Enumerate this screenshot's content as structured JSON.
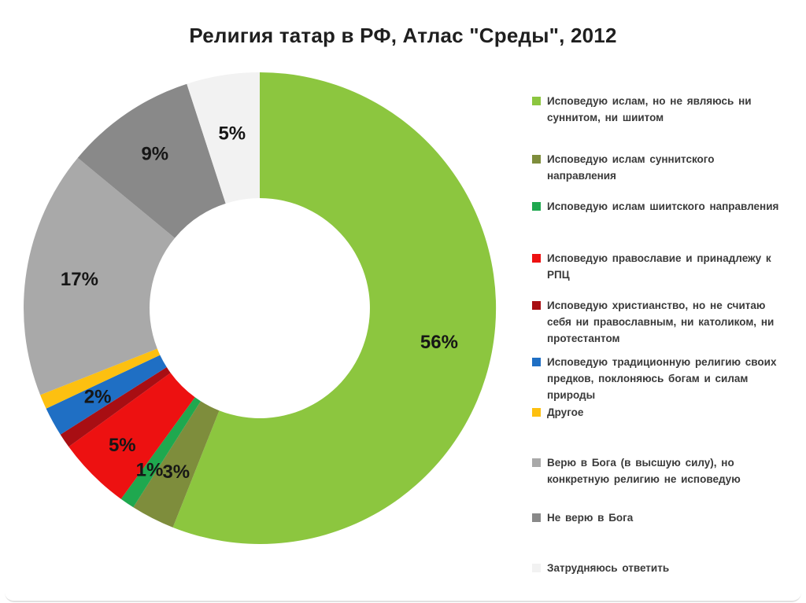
{
  "title": "Религия татар в РФ, Атлас \"Среды\", 2012",
  "chart_data": {
    "type": "pie",
    "donut": true,
    "title": "Религия татар в РФ, Атлас \"Среды\", 2012",
    "start_angle_deg": 0,
    "direction": "clockwise",
    "legend_position": "right",
    "hole_color": "#ffffff",
    "slices": [
      {
        "label": "Исповедую ислам,  но не являюсь  ни суннитом,  ни шиитом",
        "value": 56,
        "pct_label": "56%",
        "color": "#8CC63F",
        "label_r": 232
      },
      {
        "label": "Исповедую ислам суннитского  направления",
        "value": 3,
        "pct_label": "3%",
        "color": "#7E8D3C",
        "label_r": 234
      },
      {
        "label": "Исповедую ислам шиитского  направления",
        "value": 1,
        "pct_label": "1%",
        "color": "#1FA84F",
        "label_r": 249
      },
      {
        "label": "Исповедую православие  и принадлежу к РПЦ",
        "value": 5,
        "pct_label": "5%",
        "color": "#ED1111",
        "label_r": 247
      },
      {
        "label": "Исповедую христианство,  но не считаю  себя ни православным,  ни католиком,  ни протестантом",
        "value": 1,
        "pct_label": "",
        "color": "#A80E13",
        "label_r": 0
      },
      {
        "label": "Исповедую традиционную  религию своих предков, поклоняюсь  богам и силам природы",
        "value": 2,
        "pct_label": "2%",
        "color": "#1F6FC4",
        "label_r": 235,
        "label_color": "#1E3A5F"
      },
      {
        "label": "Другое",
        "value": 1,
        "pct_label": "",
        "color": "#FDC010",
        "label_r": 0
      },
      {
        "label": "Верю в Бога (в высшую силу),  но конкретную  религию не исповедую",
        "value": 17,
        "pct_label": "17%",
        "color": "#A9A9A9",
        "label_r": 232
      },
      {
        "label": "Не верю в Бога",
        "value": 9,
        "pct_label": "9%",
        "color": "#898989",
        "label_r": 237
      },
      {
        "label": "Затрудняюсь  ответить",
        "value": 5,
        "pct_label": "5%",
        "color": "#F2F2F2",
        "label_r": 225
      }
    ]
  }
}
